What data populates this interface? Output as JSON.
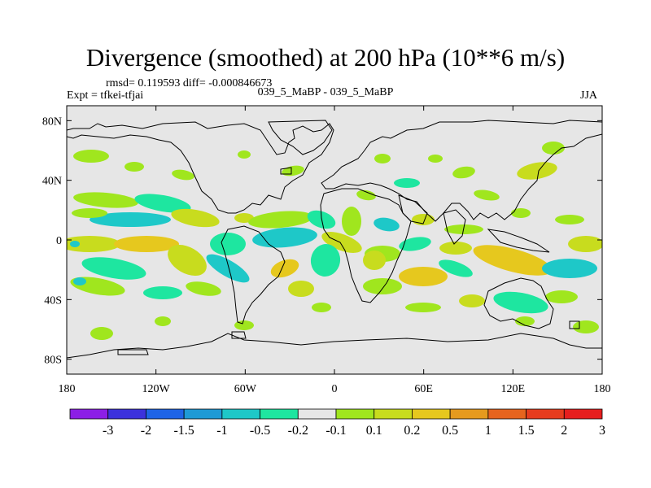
{
  "title": "Divergence (smoothed) at 200 hPa (10**6 m/s)",
  "stats": "rmsd= 0.119593 diff= -0.000846673",
  "expt": "Expt = tfkei-tfjai",
  "subtitle": "039_5_MaBP - 039_5_MaBP",
  "season": "JJA",
  "colors": {
    "background": "#e6e6e6",
    "coast": "#000000",
    "palette": [
      "#8c1ee6",
      "#3c32dc",
      "#1e64e6",
      "#1e9ad6",
      "#1ec8c8",
      "#1ee6a0",
      "#e6e6e6",
      "#a0e61e",
      "#c8dc1e",
      "#e6c81e",
      "#e69a1e",
      "#e6641e",
      "#e63c1e",
      "#e61e1e"
    ]
  },
  "map": {
    "x_ticks": [
      "180",
      "120W",
      "60W",
      "0",
      "60E",
      "120E",
      "180"
    ],
    "y_ticks": [
      "80N",
      "40N",
      "0",
      "40S",
      "80S"
    ]
  },
  "colorbar": {
    "labels": [
      "-3",
      "-2",
      "-1.5",
      "-1",
      "-0.5",
      "-0.2",
      "-0.1",
      "0.1",
      "0.2",
      "0.5",
      "1",
      "1.5",
      "2",
      "3"
    ]
  }
}
